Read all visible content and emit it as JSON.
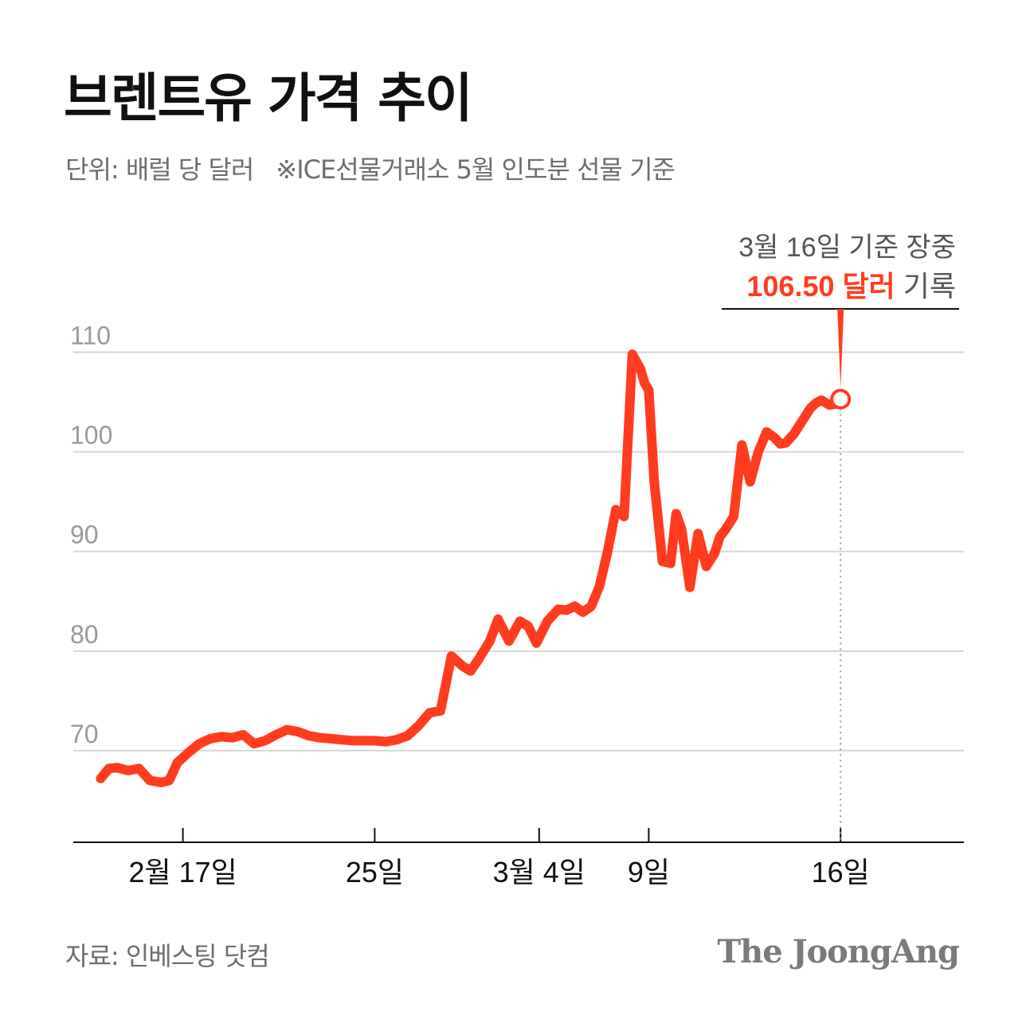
{
  "chart_data": {
    "type": "line",
    "title": "브렌트유 가격 추이",
    "subtitle": "단위: 배럴 당 달러",
    "note": "※ICE선물거래소 5월 인도분 선물 기준",
    "source": "자료: 인베스팅 닷컴",
    "brand": "The JoongAng",
    "ylim": [
      60.8,
      115
    ],
    "yticks": [
      {
        "value": 70,
        "label": "70"
      },
      {
        "value": 80,
        "label": "80"
      },
      {
        "value": 90,
        "label": "90"
      },
      {
        "value": 100,
        "label": "100"
      },
      {
        "value": 110,
        "label": "110"
      }
    ],
    "xlim": [
      -2,
      30.5
    ],
    "xticks": [
      {
        "value": 2,
        "label": "2월 17일"
      },
      {
        "value": 9,
        "label": "25일"
      },
      {
        "value": 15,
        "label": "3월 4일"
      },
      {
        "value": 19,
        "label": "9일"
      },
      {
        "value": 26,
        "label": "16일"
      }
    ],
    "series": [
      {
        "name": "브렌트유",
        "color": "#ff3c1f",
        "x": [
          -1,
          -0.7,
          -0.4,
          0,
          0.4,
          0.8,
          1.2,
          1.5,
          1.8,
          2.2,
          2.6,
          3.0,
          3.4,
          3.8,
          4.2,
          4.6,
          5.0,
          5.4,
          5.8,
          6.2,
          6.6,
          7.0,
          7.4,
          7.8,
          8.2,
          8.6,
          9.0,
          9.4,
          9.8,
          10.2,
          10.6,
          11.0,
          11.4,
          11.8,
          12.2,
          12.5,
          12.8,
          13.2,
          13.5,
          13.9,
          14.3,
          14.6,
          14.9,
          15.3,
          15.7,
          16.0,
          16.3,
          16.6,
          16.9,
          17.2,
          17.5,
          17.8,
          18.1,
          18.4,
          18.7,
          18.85,
          19.0,
          19.2,
          19.5,
          19.8,
          20.0,
          20.2,
          20.5,
          20.8,
          21.1,
          21.4,
          21.6,
          21.8,
          22.1,
          22.4,
          22.7,
          23.0,
          23.3,
          23.6,
          23.8,
          24.0,
          24.3,
          24.6,
          24.9,
          25.1,
          25.3,
          25.6,
          25.8,
          26.0
        ],
        "values": [
          67.2,
          68.2,
          68.3,
          68.0,
          68.2,
          67.0,
          66.8,
          67.0,
          68.8,
          69.8,
          70.7,
          71.2,
          71.4,
          71.3,
          71.6,
          70.7,
          71.0,
          71.6,
          72.1,
          71.9,
          71.5,
          71.3,
          71.2,
          71.1,
          71.0,
          71.0,
          71.0,
          70.9,
          71.1,
          71.5,
          72.5,
          73.8,
          74.0,
          79.5,
          78.5,
          78.0,
          79.2,
          81.0,
          83.2,
          81.0,
          83.0,
          82.5,
          80.8,
          83.0,
          84.2,
          84.1,
          84.5,
          83.9,
          84.5,
          86.5,
          90.0,
          94.2,
          93.5,
          109.8,
          108.3,
          106.9,
          106.2,
          97.0,
          89.0,
          88.8,
          93.8,
          92.2,
          86.4,
          91.8,
          88.5,
          89.8,
          91.5,
          92.2,
          93.5,
          100.7,
          97.0,
          100.0,
          102.0,
          101.4,
          100.8,
          100.9,
          101.8,
          103.1,
          104.4,
          104.9,
          105.2,
          104.7,
          104.8,
          105.3
        ]
      }
    ],
    "annotation": {
      "line1": "3월 16일 기준 장중",
      "value_text": "106.50 달러",
      "suffix_text": " 기록"
    }
  }
}
